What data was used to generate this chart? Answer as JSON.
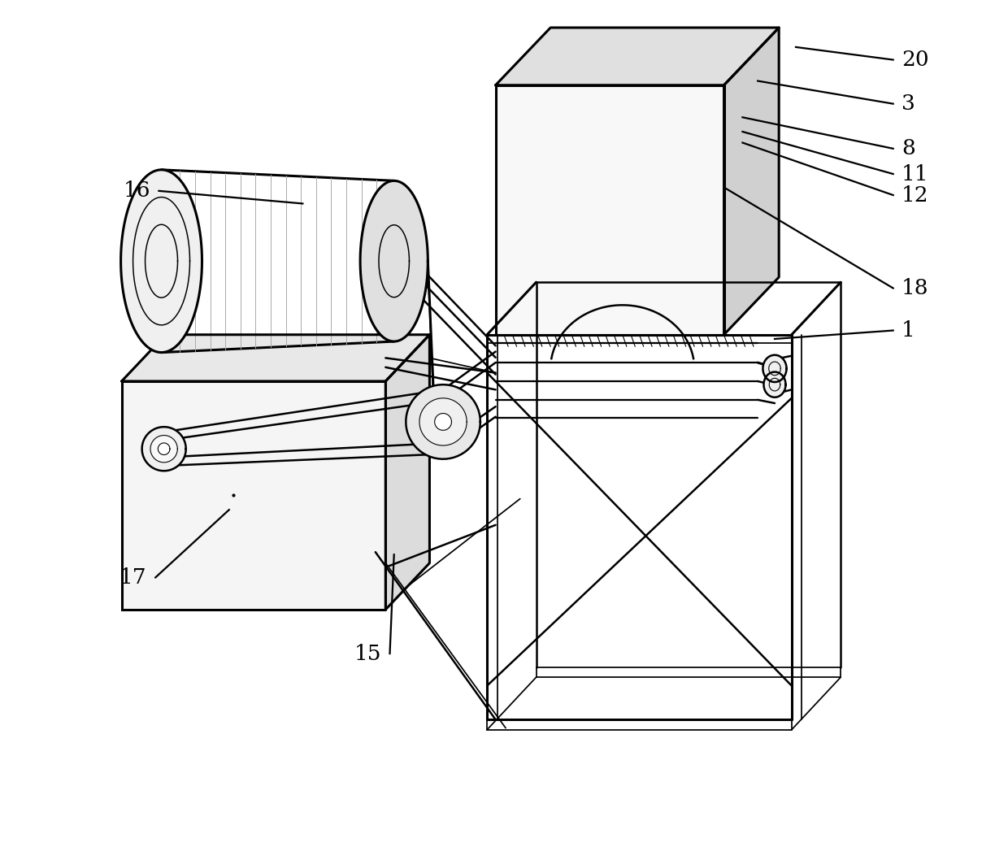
{
  "bg_color": "#ffffff",
  "lc": "#000000",
  "lw": 1.8,
  "tlw": 2.2,
  "fig_w": 12.4,
  "fig_h": 10.42,
  "leader_pairs": [
    [
      "20",
      [
        0.845,
        0.945
      ],
      [
        0.96,
        0.93
      ]
    ],
    [
      "3",
      [
        0.8,
        0.905
      ],
      [
        0.96,
        0.878
      ]
    ],
    [
      "8",
      [
        0.782,
        0.862
      ],
      [
        0.96,
        0.825
      ]
    ],
    [
      "11",
      [
        0.782,
        0.845
      ],
      [
        0.96,
        0.795
      ]
    ],
    [
      "12",
      [
        0.782,
        0.832
      ],
      [
        0.96,
        0.77
      ]
    ],
    [
      "18",
      [
        0.762,
        0.778
      ],
      [
        0.96,
        0.66
      ]
    ],
    [
      "1",
      [
        0.82,
        0.6
      ],
      [
        0.96,
        0.61
      ]
    ],
    [
      "16",
      [
        0.262,
        0.76
      ],
      [
        0.092,
        0.775
      ]
    ],
    [
      "17",
      [
        0.175,
        0.398
      ],
      [
        0.088,
        0.318
      ]
    ],
    [
      "15",
      [
        0.37,
        0.345
      ],
      [
        0.365,
        0.228
      ]
    ]
  ],
  "label_fontsize": 19
}
